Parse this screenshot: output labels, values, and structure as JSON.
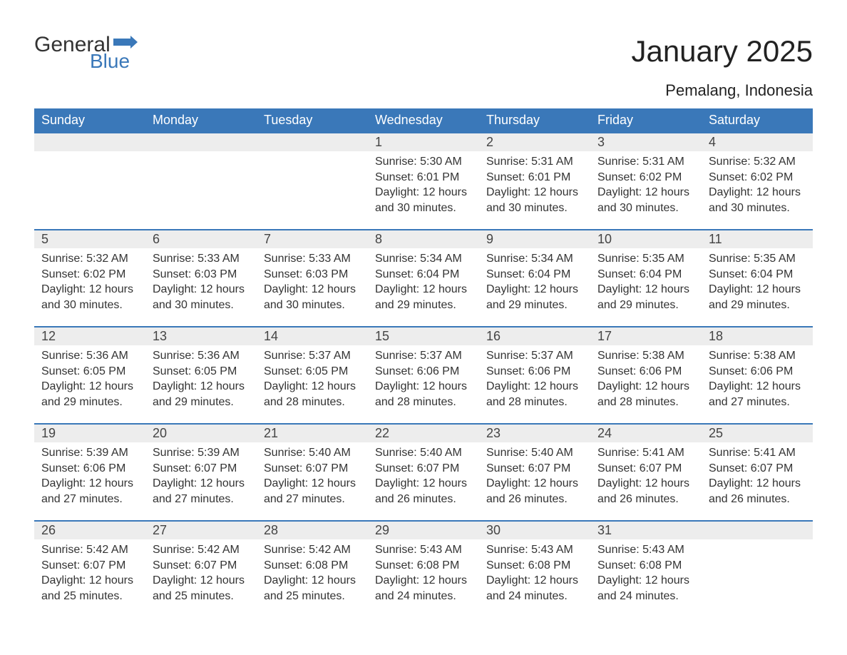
{
  "logo": {
    "word1": "General",
    "word2": "Blue",
    "flag_color": "#3a78b9"
  },
  "title": "January 2025",
  "location": "Pemalang, Indonesia",
  "colors": {
    "header_bg": "#3a78b9",
    "header_text": "#ffffff",
    "daynum_bg": "#ededed",
    "row_border": "#3a78b9",
    "body_text": "#333333",
    "page_bg": "#ffffff"
  },
  "weekdays": [
    "Sunday",
    "Monday",
    "Tuesday",
    "Wednesday",
    "Thursday",
    "Friday",
    "Saturday"
  ],
  "weeks": [
    [
      null,
      null,
      null,
      {
        "n": "1",
        "sr": "Sunrise: 5:30 AM",
        "ss": "Sunset: 6:01 PM",
        "d1": "Daylight: 12 hours",
        "d2": "and 30 minutes."
      },
      {
        "n": "2",
        "sr": "Sunrise: 5:31 AM",
        "ss": "Sunset: 6:01 PM",
        "d1": "Daylight: 12 hours",
        "d2": "and 30 minutes."
      },
      {
        "n": "3",
        "sr": "Sunrise: 5:31 AM",
        "ss": "Sunset: 6:02 PM",
        "d1": "Daylight: 12 hours",
        "d2": "and 30 minutes."
      },
      {
        "n": "4",
        "sr": "Sunrise: 5:32 AM",
        "ss": "Sunset: 6:02 PM",
        "d1": "Daylight: 12 hours",
        "d2": "and 30 minutes."
      }
    ],
    [
      {
        "n": "5",
        "sr": "Sunrise: 5:32 AM",
        "ss": "Sunset: 6:02 PM",
        "d1": "Daylight: 12 hours",
        "d2": "and 30 minutes."
      },
      {
        "n": "6",
        "sr": "Sunrise: 5:33 AM",
        "ss": "Sunset: 6:03 PM",
        "d1": "Daylight: 12 hours",
        "d2": "and 30 minutes."
      },
      {
        "n": "7",
        "sr": "Sunrise: 5:33 AM",
        "ss": "Sunset: 6:03 PM",
        "d1": "Daylight: 12 hours",
        "d2": "and 30 minutes."
      },
      {
        "n": "8",
        "sr": "Sunrise: 5:34 AM",
        "ss": "Sunset: 6:04 PM",
        "d1": "Daylight: 12 hours",
        "d2": "and 29 minutes."
      },
      {
        "n": "9",
        "sr": "Sunrise: 5:34 AM",
        "ss": "Sunset: 6:04 PM",
        "d1": "Daylight: 12 hours",
        "d2": "and 29 minutes."
      },
      {
        "n": "10",
        "sr": "Sunrise: 5:35 AM",
        "ss": "Sunset: 6:04 PM",
        "d1": "Daylight: 12 hours",
        "d2": "and 29 minutes."
      },
      {
        "n": "11",
        "sr": "Sunrise: 5:35 AM",
        "ss": "Sunset: 6:04 PM",
        "d1": "Daylight: 12 hours",
        "d2": "and 29 minutes."
      }
    ],
    [
      {
        "n": "12",
        "sr": "Sunrise: 5:36 AM",
        "ss": "Sunset: 6:05 PM",
        "d1": "Daylight: 12 hours",
        "d2": "and 29 minutes."
      },
      {
        "n": "13",
        "sr": "Sunrise: 5:36 AM",
        "ss": "Sunset: 6:05 PM",
        "d1": "Daylight: 12 hours",
        "d2": "and 29 minutes."
      },
      {
        "n": "14",
        "sr": "Sunrise: 5:37 AM",
        "ss": "Sunset: 6:05 PM",
        "d1": "Daylight: 12 hours",
        "d2": "and 28 minutes."
      },
      {
        "n": "15",
        "sr": "Sunrise: 5:37 AM",
        "ss": "Sunset: 6:06 PM",
        "d1": "Daylight: 12 hours",
        "d2": "and 28 minutes."
      },
      {
        "n": "16",
        "sr": "Sunrise: 5:37 AM",
        "ss": "Sunset: 6:06 PM",
        "d1": "Daylight: 12 hours",
        "d2": "and 28 minutes."
      },
      {
        "n": "17",
        "sr": "Sunrise: 5:38 AM",
        "ss": "Sunset: 6:06 PM",
        "d1": "Daylight: 12 hours",
        "d2": "and 28 minutes."
      },
      {
        "n": "18",
        "sr": "Sunrise: 5:38 AM",
        "ss": "Sunset: 6:06 PM",
        "d1": "Daylight: 12 hours",
        "d2": "and 27 minutes."
      }
    ],
    [
      {
        "n": "19",
        "sr": "Sunrise: 5:39 AM",
        "ss": "Sunset: 6:06 PM",
        "d1": "Daylight: 12 hours",
        "d2": "and 27 minutes."
      },
      {
        "n": "20",
        "sr": "Sunrise: 5:39 AM",
        "ss": "Sunset: 6:07 PM",
        "d1": "Daylight: 12 hours",
        "d2": "and 27 minutes."
      },
      {
        "n": "21",
        "sr": "Sunrise: 5:40 AM",
        "ss": "Sunset: 6:07 PM",
        "d1": "Daylight: 12 hours",
        "d2": "and 27 minutes."
      },
      {
        "n": "22",
        "sr": "Sunrise: 5:40 AM",
        "ss": "Sunset: 6:07 PM",
        "d1": "Daylight: 12 hours",
        "d2": "and 26 minutes."
      },
      {
        "n": "23",
        "sr": "Sunrise: 5:40 AM",
        "ss": "Sunset: 6:07 PM",
        "d1": "Daylight: 12 hours",
        "d2": "and 26 minutes."
      },
      {
        "n": "24",
        "sr": "Sunrise: 5:41 AM",
        "ss": "Sunset: 6:07 PM",
        "d1": "Daylight: 12 hours",
        "d2": "and 26 minutes."
      },
      {
        "n": "25",
        "sr": "Sunrise: 5:41 AM",
        "ss": "Sunset: 6:07 PM",
        "d1": "Daylight: 12 hours",
        "d2": "and 26 minutes."
      }
    ],
    [
      {
        "n": "26",
        "sr": "Sunrise: 5:42 AM",
        "ss": "Sunset: 6:07 PM",
        "d1": "Daylight: 12 hours",
        "d2": "and 25 minutes."
      },
      {
        "n": "27",
        "sr": "Sunrise: 5:42 AM",
        "ss": "Sunset: 6:07 PM",
        "d1": "Daylight: 12 hours",
        "d2": "and 25 minutes."
      },
      {
        "n": "28",
        "sr": "Sunrise: 5:42 AM",
        "ss": "Sunset: 6:08 PM",
        "d1": "Daylight: 12 hours",
        "d2": "and 25 minutes."
      },
      {
        "n": "29",
        "sr": "Sunrise: 5:43 AM",
        "ss": "Sunset: 6:08 PM",
        "d1": "Daylight: 12 hours",
        "d2": "and 24 minutes."
      },
      {
        "n": "30",
        "sr": "Sunrise: 5:43 AM",
        "ss": "Sunset: 6:08 PM",
        "d1": "Daylight: 12 hours",
        "d2": "and 24 minutes."
      },
      {
        "n": "31",
        "sr": "Sunrise: 5:43 AM",
        "ss": "Sunset: 6:08 PM",
        "d1": "Daylight: 12 hours",
        "d2": "and 24 minutes."
      },
      null
    ]
  ]
}
